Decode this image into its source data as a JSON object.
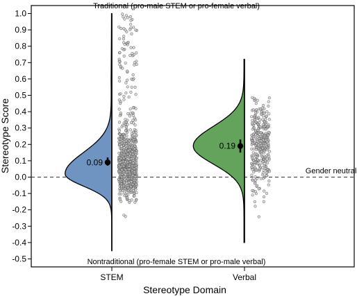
{
  "chart_data": {
    "type": "violin",
    "title": "",
    "xlabel": "Stereotype Domain",
    "ylabel": "Stereotype Score",
    "categories": [
      "STEM",
      "Verbal"
    ],
    "ylim": [
      -0.5,
      1.0
    ],
    "yticks": [
      "1.0",
      "0.9",
      "0.8",
      "0.7",
      "0.6",
      "0.5",
      "0.4",
      "0.3",
      "0.2",
      "0.1",
      "0.0",
      "-0.1",
      "-0.2",
      "-0.3",
      "-0.4",
      "-0.5"
    ],
    "reference_line": {
      "y": 0.0,
      "label": "Gender neutrality",
      "style": "dashed"
    },
    "annotations": {
      "top": "Traditional (pro-male STEM or pro-female verbal)",
      "bottom": "Nontraditional (pro-female STEM or pro-male verbal)"
    },
    "series": [
      {
        "category": "STEM",
        "color": "#6f94c1",
        "mean": 0.09,
        "mean_label": "0.09",
        "ci": [
          0.07,
          0.12
        ],
        "min": -0.45,
        "max": 1.0,
        "density_peak": 0.02,
        "n_points": 760
      },
      {
        "category": "Verbal",
        "color": "#63a35c",
        "mean": 0.19,
        "mean_label": "0.19",
        "ci": [
          0.15,
          0.23
        ],
        "min": -0.4,
        "max": 0.72,
        "density_peak": 0.19,
        "n_points": 320
      }
    ]
  }
}
